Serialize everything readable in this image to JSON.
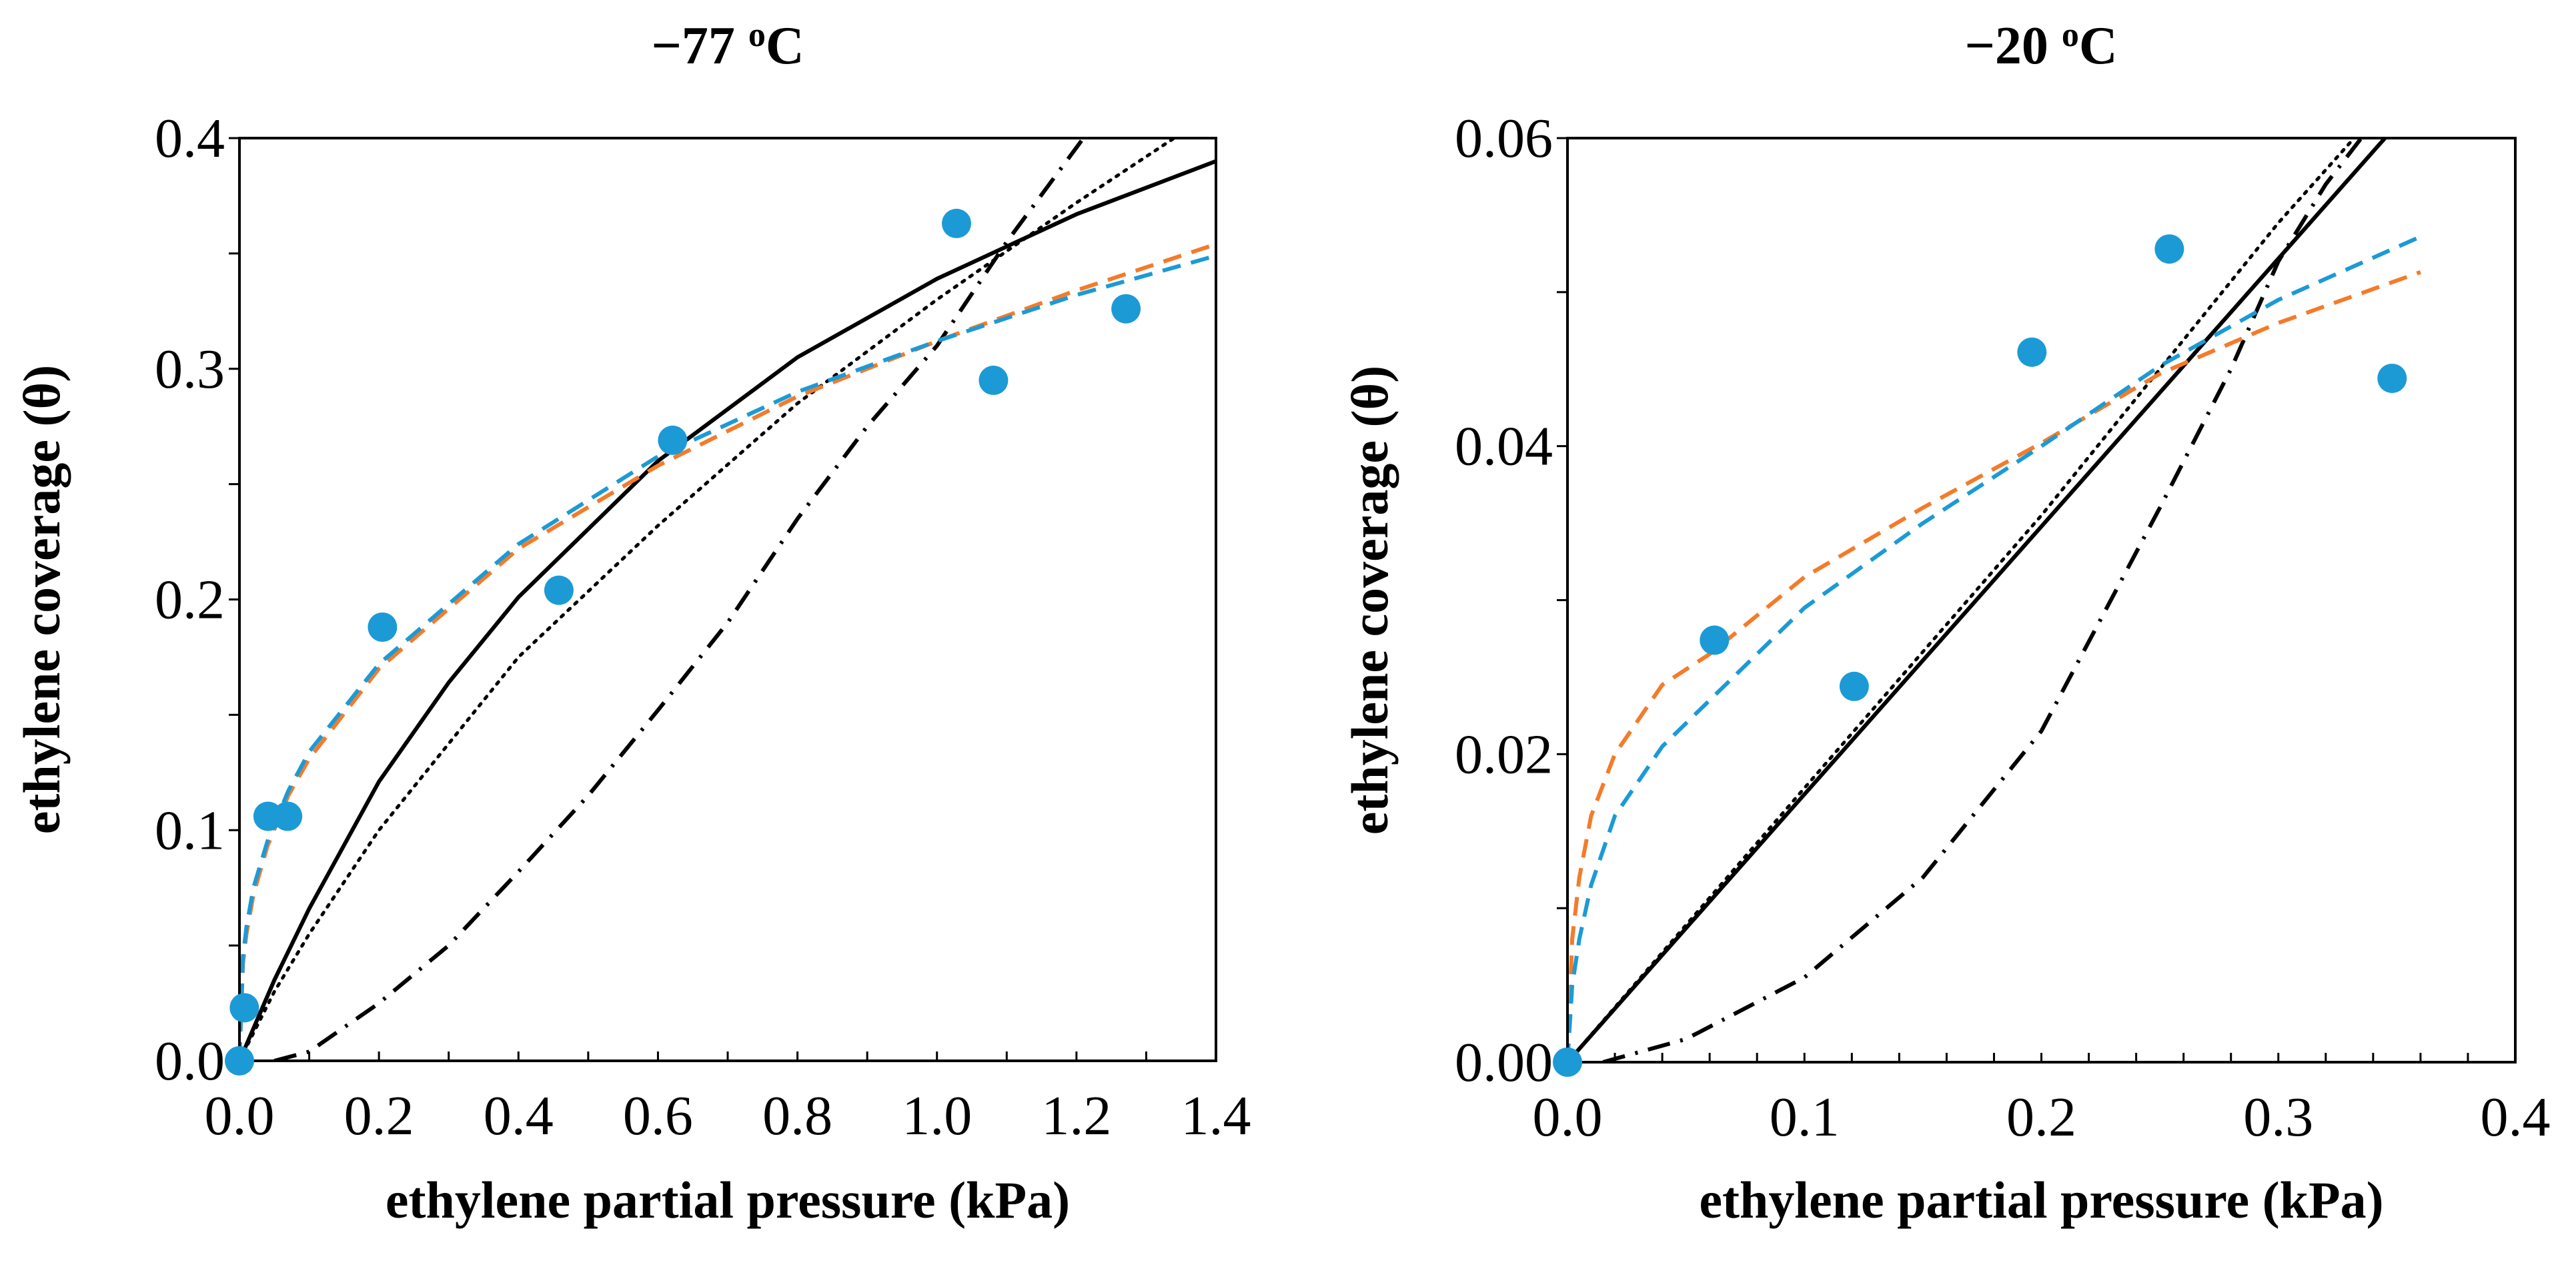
{
  "colors": {
    "data_points": "#1c9ad6",
    "blue_fit": "#1c9ad6",
    "orange_fit": "#f47b2a",
    "black": "#000000"
  },
  "chart_data": [
    {
      "type": "scatter",
      "title": {
        "main": "−77 ",
        "sup": "o",
        "unit": "C"
      },
      "xlabel": "ethylene partial pressure (kPa)",
      "ylabel": "ethylene coverage (θ)",
      "xlim": [
        0,
        1.4
      ],
      "ylim": [
        0,
        0.4
      ],
      "xticks": [
        "0.0",
        "0.2",
        "0.4",
        "0.6",
        "0.8",
        "1.0",
        "1.2",
        "1.4"
      ],
      "yticks": [
        "0.0",
        "0.1",
        "0.2",
        "0.3",
        "0.4"
      ],
      "xminor_step": 0.1,
      "yminor_step": 0.05,
      "grid": false,
      "points": [
        [
          0,
          0
        ],
        [
          0.007,
          0.023
        ],
        [
          0.041,
          0.106
        ],
        [
          0.069,
          0.106
        ],
        [
          0.205,
          0.188
        ],
        [
          0.458,
          0.204
        ],
        [
          0.621,
          0.269
        ],
        [
          1.028,
          0.363
        ],
        [
          1.081,
          0.295
        ],
        [
          1.271,
          0.326
        ]
      ],
      "series": [
        {
          "name": "solid fit",
          "style": "solid",
          "color": "#000000",
          "points": [
            [
              0,
              0
            ],
            [
              0.05,
              0.035
            ],
            [
              0.1,
              0.066
            ],
            [
              0.2,
              0.121
            ],
            [
              0.3,
              0.164
            ],
            [
              0.4,
              0.201
            ],
            [
              0.6,
              0.26
            ],
            [
              0.8,
              0.305
            ],
            [
              1.0,
              0.339
            ],
            [
              1.2,
              0.367
            ],
            [
              1.4,
              0.39
            ]
          ]
        },
        {
          "name": "dotted fit",
          "style": "dotted",
          "color": "#000000",
          "points": [
            [
              0,
              0
            ],
            [
              0.05,
              0.03
            ],
            [
              0.1,
              0.055
            ],
            [
              0.2,
              0.1
            ],
            [
              0.4,
              0.175
            ],
            [
              0.6,
              0.232
            ],
            [
              0.8,
              0.285
            ],
            [
              1.0,
              0.33
            ],
            [
              1.2,
              0.372
            ],
            [
              1.34,
              0.4
            ]
          ]
        },
        {
          "name": "dash-dot fit",
          "style": "dashdot",
          "color": "#000000",
          "points": [
            [
              0.05,
              0
            ],
            [
              0.1,
              0.004
            ],
            [
              0.2,
              0.025
            ],
            [
              0.3,
              0.05
            ],
            [
              0.4,
              0.082
            ],
            [
              0.5,
              0.115
            ],
            [
              0.6,
              0.152
            ],
            [
              0.7,
              0.19
            ],
            [
              0.8,
              0.235
            ],
            [
              0.9,
              0.275
            ],
            [
              1.0,
              0.31
            ],
            [
              1.1,
              0.355
            ],
            [
              1.21,
              0.4
            ]
          ]
        },
        {
          "name": "orange dashed fit",
          "style": "dashed",
          "color": "#f47b2a",
          "points": [
            [
              0,
              0
            ],
            [
              0.005,
              0.042
            ],
            [
              0.01,
              0.055
            ],
            [
              0.02,
              0.072
            ],
            [
              0.04,
              0.093
            ],
            [
              0.07,
              0.115
            ],
            [
              0.1,
              0.131
            ],
            [
              0.2,
              0.17
            ],
            [
              0.4,
              0.222
            ],
            [
              0.6,
              0.258
            ],
            [
              0.8,
              0.288
            ],
            [
              1.0,
              0.312
            ],
            [
              1.2,
              0.334
            ],
            [
              1.4,
              0.354
            ]
          ]
        },
        {
          "name": "blue dashed fit",
          "style": "dashed",
          "color": "#1c9ad6",
          "points": [
            [
              0,
              0
            ],
            [
              0.005,
              0.045
            ],
            [
              0.01,
              0.058
            ],
            [
              0.02,
              0.075
            ],
            [
              0.04,
              0.095
            ],
            [
              0.07,
              0.117
            ],
            [
              0.1,
              0.134
            ],
            [
              0.2,
              0.172
            ],
            [
              0.4,
              0.224
            ],
            [
              0.6,
              0.262
            ],
            [
              0.8,
              0.29
            ],
            [
              1.0,
              0.312
            ],
            [
              1.2,
              0.332
            ],
            [
              1.4,
              0.349
            ]
          ]
        }
      ]
    },
    {
      "type": "scatter",
      "title": {
        "main": "−20 ",
        "sup": "o",
        "unit": "C"
      },
      "xlabel": "ethylene partial pressure (kPa)",
      "ylabel": "ethylene coverage (θ)",
      "xlim": [
        0,
        0.4
      ],
      "ylim": [
        0,
        0.06
      ],
      "xticks": [
        "0.0",
        "0.1",
        "0.2",
        "0.3",
        "0.4"
      ],
      "yticks": [
        "0.00",
        "0.02",
        "0.04",
        "0.06"
      ],
      "xminor_step": 0.02,
      "yminor_step": 0.01,
      "grid": false,
      "points": [
        [
          0,
          0
        ],
        [
          0.062,
          0.0274
        ],
        [
          0.121,
          0.0244
        ],
        [
          0.196,
          0.0461
        ],
        [
          0.254,
          0.0528
        ],
        [
          0.348,
          0.0444
        ]
      ],
      "series": [
        {
          "name": "solid fit",
          "style": "solid",
          "color": "#000000",
          "points": [
            [
              0,
              0
            ],
            [
              0.345,
              0.06
            ]
          ]
        },
        {
          "name": "dotted fit",
          "style": "dotted",
          "color": "#000000",
          "points": [
            [
              0,
              0
            ],
            [
              0.1,
              0.0178
            ],
            [
              0.2,
              0.0355
            ],
            [
              0.25,
              0.045
            ],
            [
              0.3,
              0.0545
            ],
            [
              0.332,
              0.06
            ]
          ]
        },
        {
          "name": "dash-dot fit",
          "style": "dashdot",
          "color": "#000000",
          "points": [
            [
              0.015,
              0
            ],
            [
              0.05,
              0.0015
            ],
            [
              0.1,
              0.0055
            ],
            [
              0.15,
              0.012
            ],
            [
              0.2,
              0.0215
            ],
            [
              0.25,
              0.036
            ],
            [
              0.28,
              0.045
            ],
            [
              0.3,
              0.052
            ],
            [
              0.32,
              0.057
            ],
            [
              0.335,
              0.06
            ]
          ]
        },
        {
          "name": "orange dashed fit",
          "style": "dashed",
          "color": "#f47b2a",
          "points": [
            [
              0,
              0
            ],
            [
              0.002,
              0.008
            ],
            [
              0.005,
              0.012
            ],
            [
              0.01,
              0.016
            ],
            [
              0.02,
              0.02
            ],
            [
              0.04,
              0.0245
            ],
            [
              0.06,
              0.0265
            ],
            [
              0.1,
              0.0315
            ],
            [
              0.15,
              0.036
            ],
            [
              0.2,
              0.0402
            ],
            [
              0.25,
              0.0447
            ],
            [
              0.3,
              0.048
            ],
            [
              0.36,
              0.0513
            ]
          ]
        },
        {
          "name": "blue dashed fit",
          "style": "dashed",
          "color": "#1c9ad6",
          "points": [
            [
              0,
              0
            ],
            [
              0.002,
              0.005
            ],
            [
              0.005,
              0.008
            ],
            [
              0.01,
              0.0115
            ],
            [
              0.02,
              0.016
            ],
            [
              0.04,
              0.0205
            ],
            [
              0.06,
              0.0235
            ],
            [
              0.1,
              0.0295
            ],
            [
              0.15,
              0.035
            ],
            [
              0.2,
              0.04
            ],
            [
              0.25,
              0.0452
            ],
            [
              0.3,
              0.0495
            ],
            [
              0.36,
              0.0536
            ]
          ]
        }
      ]
    }
  ]
}
